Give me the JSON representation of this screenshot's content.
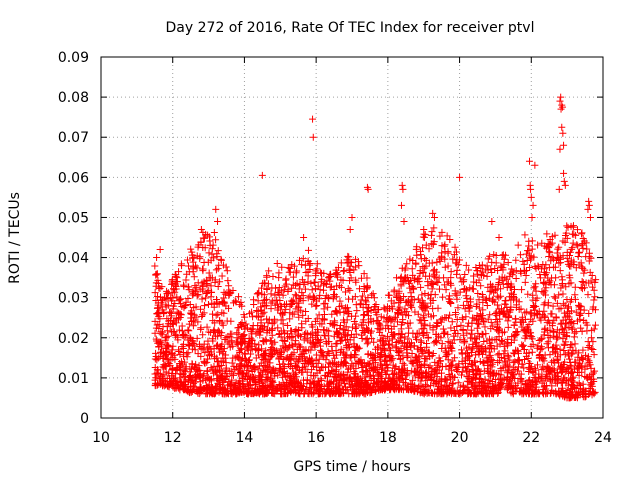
{
  "chart_data": {
    "type": "scatter",
    "title": "Day 272 of 2016, Rate Of TEC Index for receiver ptvl",
    "xlabel": "GPS time / hours",
    "ylabel": "ROTI / TECUs",
    "xlim": [
      10,
      24
    ],
    "ylim": [
      0,
      0.09
    ],
    "xticks": [
      10,
      12,
      14,
      16,
      18,
      20,
      22,
      24
    ],
    "xtick_labels": [
      "10",
      "12",
      "14",
      "16",
      "18",
      "20",
      "22",
      "24"
    ],
    "yticks": [
      0,
      0.01,
      0.02,
      0.03,
      0.04,
      0.05,
      0.06,
      0.07,
      0.08,
      0.09
    ],
    "ytick_labels": [
      "0",
      "0.01",
      "0.02",
      "0.03",
      "0.04",
      "0.05",
      "0.06",
      "0.07",
      "0.08",
      "0.09"
    ],
    "grid": true,
    "marker": "+",
    "color": "#ff0000",
    "x_range_of_data": [
      11.5,
      23.8
    ],
    "envelope": {
      "x": [
        11.5,
        11.8,
        12.2,
        12.6,
        13.0,
        13.3,
        13.6,
        14.0,
        14.3,
        14.6,
        15.0,
        15.4,
        15.8,
        16.2,
        16.6,
        17.0,
        17.4,
        17.8,
        18.2,
        18.6,
        19.0,
        19.4,
        19.8,
        20.2,
        20.6,
        21.0,
        21.4,
        21.8,
        22.2,
        22.6,
        23.0,
        23.4,
        23.8
      ],
      "low": [
        0.008,
        0.008,
        0.007,
        0.006,
        0.006,
        0.006,
        0.006,
        0.006,
        0.006,
        0.006,
        0.006,
        0.006,
        0.006,
        0.006,
        0.006,
        0.006,
        0.006,
        0.007,
        0.007,
        0.007,
        0.006,
        0.006,
        0.006,
        0.006,
        0.006,
        0.006,
        0.006,
        0.006,
        0.006,
        0.006,
        0.005,
        0.005,
        0.006
      ],
      "high": [
        0.038,
        0.032,
        0.038,
        0.044,
        0.048,
        0.046,
        0.034,
        0.028,
        0.03,
        0.036,
        0.04,
        0.038,
        0.042,
        0.036,
        0.038,
        0.042,
        0.036,
        0.026,
        0.035,
        0.04,
        0.046,
        0.048,
        0.044,
        0.04,
        0.038,
        0.042,
        0.04,
        0.046,
        0.044,
        0.048,
        0.05,
        0.048,
        0.04
      ]
    },
    "outliers": [
      {
        "x": 11.55,
        "y": 0.04
      },
      {
        "x": 11.65,
        "y": 0.042
      },
      {
        "x": 12.8,
        "y": 0.047
      },
      {
        "x": 13.2,
        "y": 0.052
      },
      {
        "x": 13.25,
        "y": 0.049
      },
      {
        "x": 14.5,
        "y": 0.0605
      },
      {
        "x": 15.9,
        "y": 0.0745
      },
      {
        "x": 15.92,
        "y": 0.07
      },
      {
        "x": 15.65,
        "y": 0.045
      },
      {
        "x": 17.0,
        "y": 0.05
      },
      {
        "x": 16.95,
        "y": 0.047
      },
      {
        "x": 17.45,
        "y": 0.057
      },
      {
        "x": 17.43,
        "y": 0.0575
      },
      {
        "x": 18.4,
        "y": 0.058
      },
      {
        "x": 18.42,
        "y": 0.057
      },
      {
        "x": 18.38,
        "y": 0.053
      },
      {
        "x": 18.45,
        "y": 0.049
      },
      {
        "x": 19.0,
        "y": 0.047
      },
      {
        "x": 19.25,
        "y": 0.051
      },
      {
        "x": 19.3,
        "y": 0.05
      },
      {
        "x": 20.0,
        "y": 0.06
      },
      {
        "x": 20.9,
        "y": 0.049
      },
      {
        "x": 21.1,
        "y": 0.045
      },
      {
        "x": 21.95,
        "y": 0.064
      },
      {
        "x": 21.97,
        "y": 0.058
      },
      {
        "x": 21.98,
        "y": 0.057
      },
      {
        "x": 22.0,
        "y": 0.055
      },
      {
        "x": 22.05,
        "y": 0.053
      },
      {
        "x": 22.02,
        "y": 0.05
      },
      {
        "x": 22.1,
        "y": 0.063
      },
      {
        "x": 22.8,
        "y": 0.079
      },
      {
        "x": 22.82,
        "y": 0.08
      },
      {
        "x": 22.85,
        "y": 0.078
      },
      {
        "x": 22.83,
        "y": 0.077
      },
      {
        "x": 22.87,
        "y": 0.0775
      },
      {
        "x": 22.88,
        "y": 0.071
      },
      {
        "x": 22.9,
        "y": 0.068
      },
      {
        "x": 22.8,
        "y": 0.067
      },
      {
        "x": 22.85,
        "y": 0.0725
      },
      {
        "x": 22.9,
        "y": 0.061
      },
      {
        "x": 22.78,
        "y": 0.057
      },
      {
        "x": 22.95,
        "y": 0.058
      },
      {
        "x": 22.92,
        "y": 0.059
      },
      {
        "x": 23.6,
        "y": 0.054
      },
      {
        "x": 23.62,
        "y": 0.053
      },
      {
        "x": 23.58,
        "y": 0.052
      },
      {
        "x": 23.65,
        "y": 0.05
      }
    ],
    "sample_count": 4200,
    "sample_seed": 272
  }
}
